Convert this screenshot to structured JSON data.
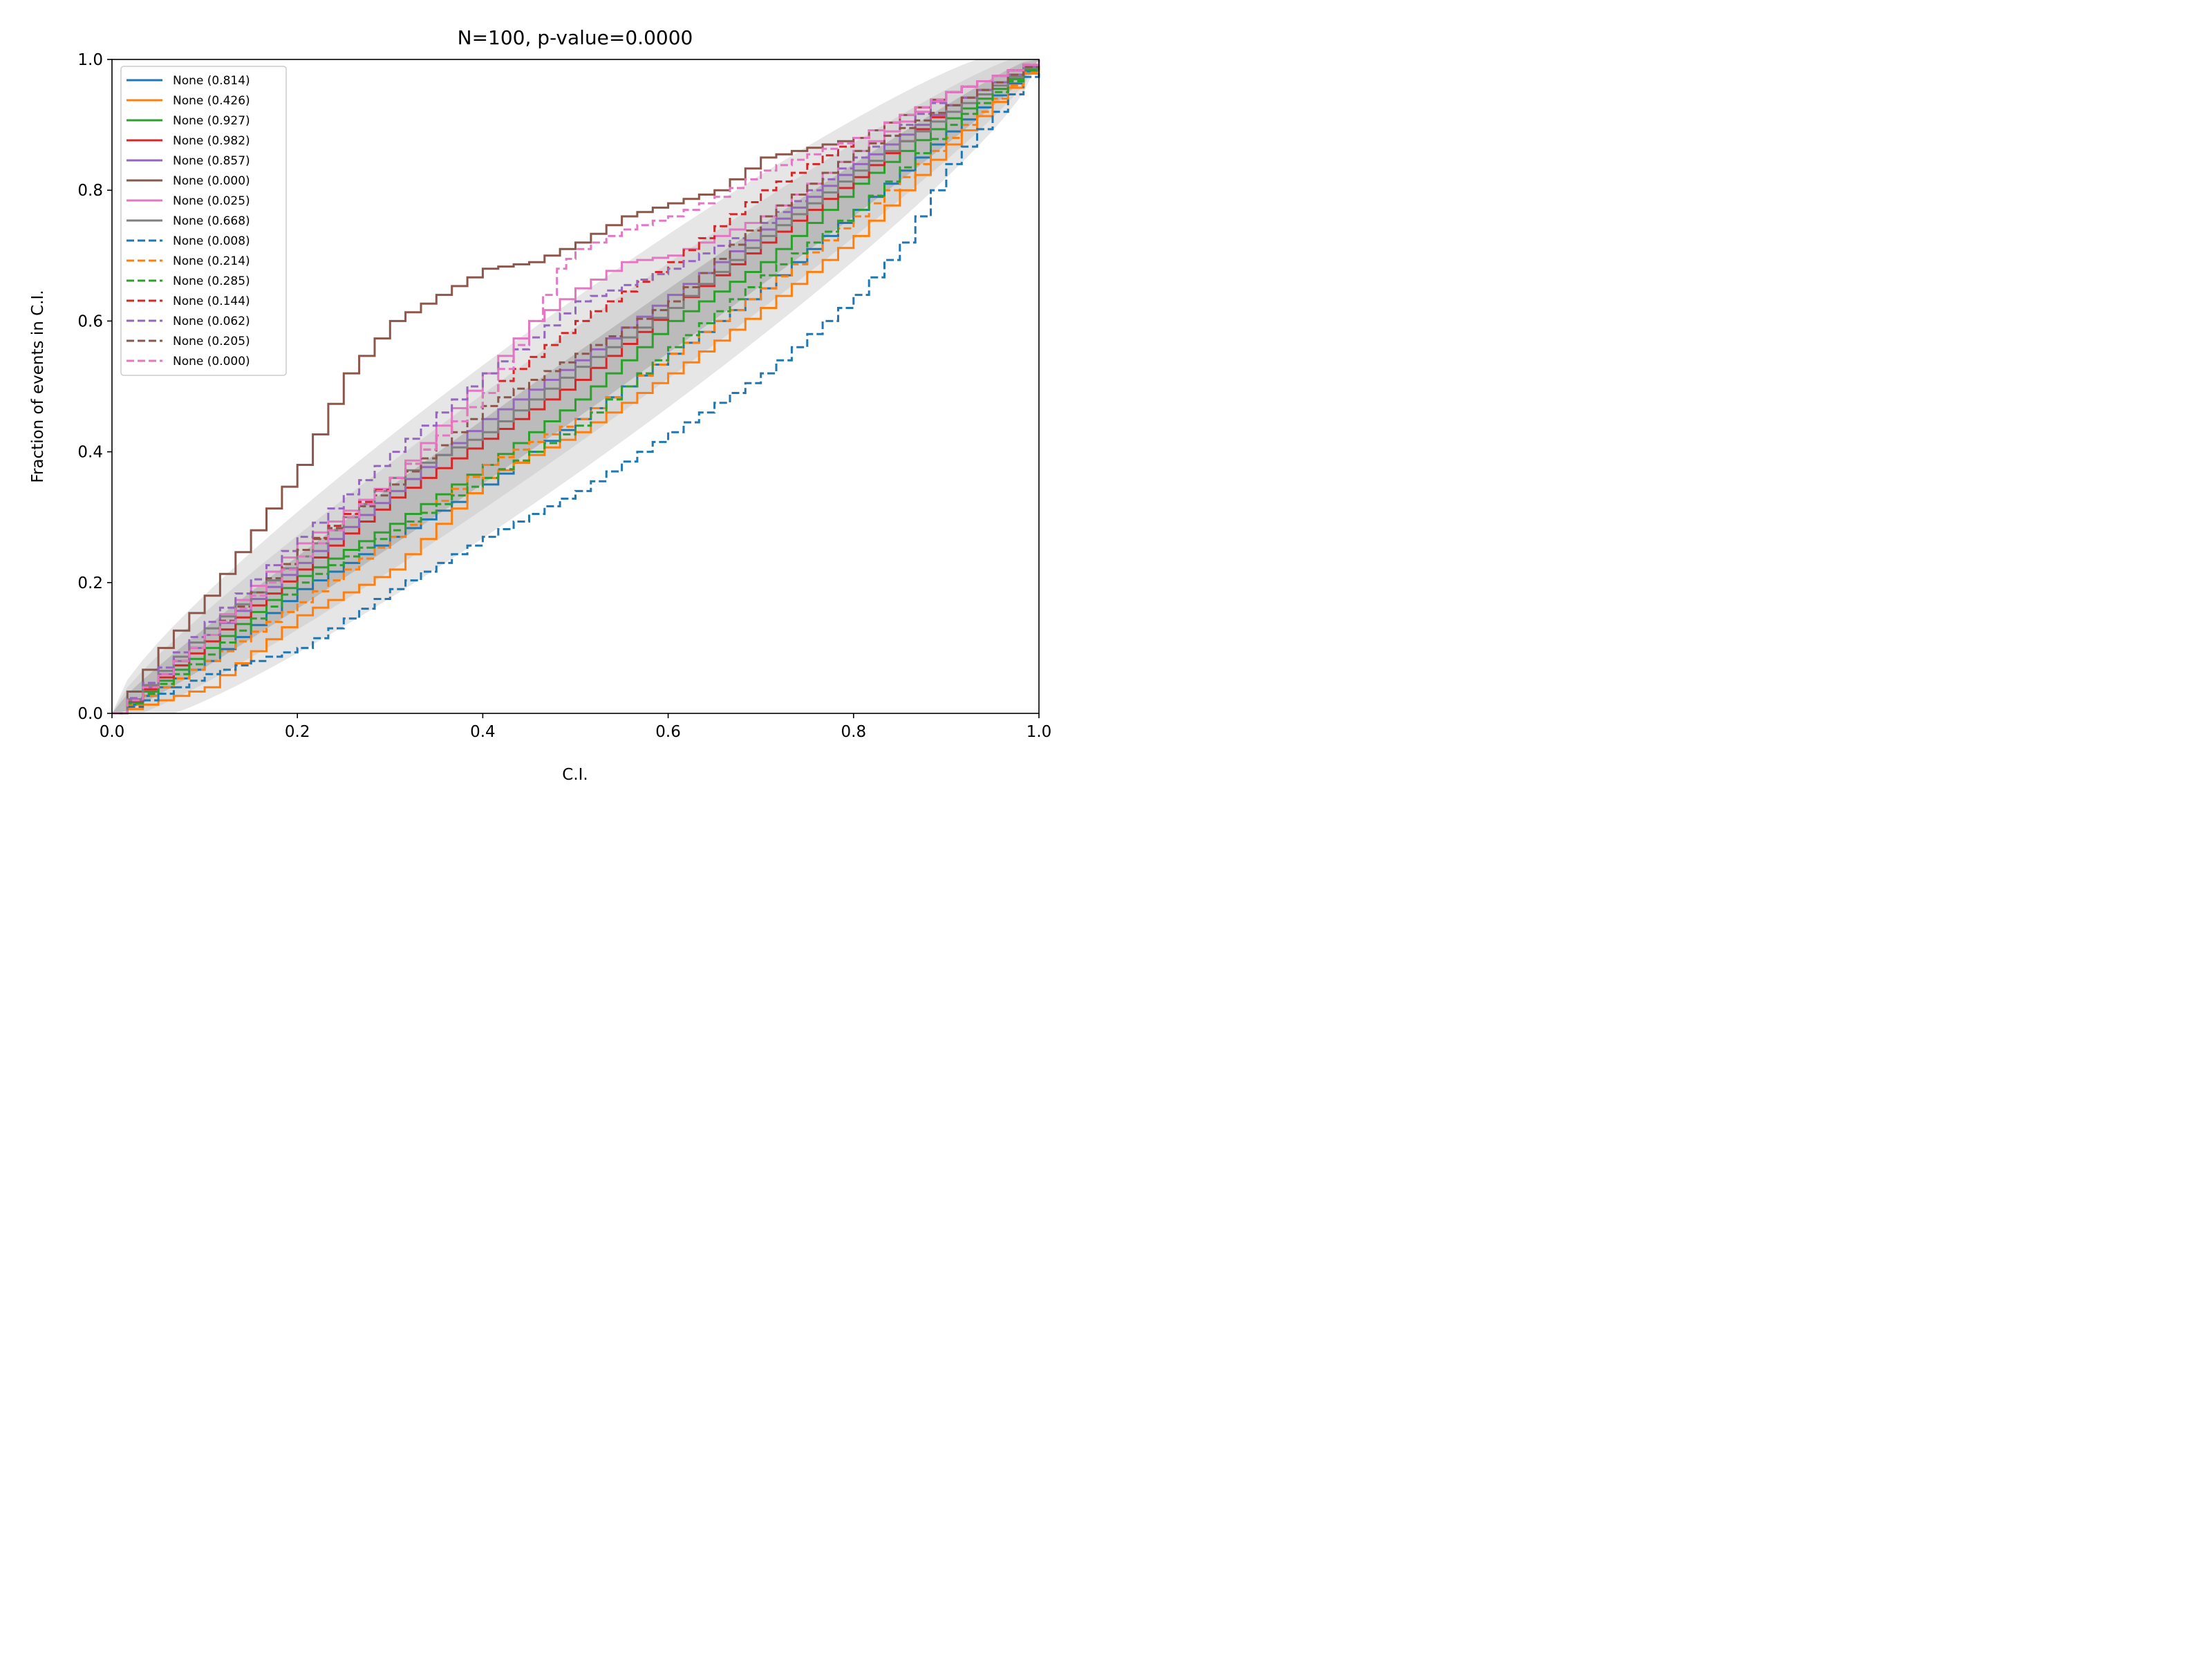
{
  "chart_data": {
    "type": "line",
    "title": "N=100, p-value=0.0000",
    "xlabel": "C.I.",
    "ylabel": "Fraction of events in C.I.",
    "xlim": [
      0,
      1
    ],
    "ylim": [
      0,
      1
    ],
    "xticks": [
      "0.0",
      "0.2",
      "0.4",
      "0.6",
      "0.8",
      "1.0"
    ],
    "yticks": [
      "0.0",
      "0.2",
      "0.4",
      "0.6",
      "0.8",
      "1.0"
    ],
    "legend_position": "upper-left",
    "confidence_bands": [
      {
        "name": "1-sigma",
        "color": "#bbbbbb",
        "halfwidth_at_half": 0.05
      },
      {
        "name": "2-sigma",
        "color": "#d6d6d6",
        "halfwidth_at_half": 0.09
      },
      {
        "name": "3-sigma",
        "color": "#e6e6e6",
        "halfwidth_at_half": 0.135
      }
    ],
    "series": [
      {
        "name": "None (0.814)",
        "color": "#1f77b4",
        "dash": "solid",
        "x": [
          0,
          0.1,
          0.2,
          0.3,
          0.4,
          0.5,
          0.6,
          0.7,
          0.8,
          0.9,
          1.0
        ],
        "y": [
          0,
          0.08,
          0.19,
          0.27,
          0.35,
          0.45,
          0.55,
          0.65,
          0.77,
          0.89,
          1.0
        ]
      },
      {
        "name": "None (0.426)",
        "color": "#ff7f0e",
        "dash": "solid",
        "x": [
          0,
          0.1,
          0.2,
          0.3,
          0.4,
          0.5,
          0.6,
          0.7,
          0.8,
          0.9,
          1.0
        ],
        "y": [
          0,
          0.04,
          0.15,
          0.22,
          0.36,
          0.43,
          0.52,
          0.62,
          0.73,
          0.87,
          1.0
        ]
      },
      {
        "name": "None (0.927)",
        "color": "#2ca02c",
        "dash": "solid",
        "x": [
          0,
          0.1,
          0.2,
          0.3,
          0.4,
          0.5,
          0.6,
          0.7,
          0.8,
          0.9,
          1.0
        ],
        "y": [
          0,
          0.1,
          0.21,
          0.29,
          0.38,
          0.48,
          0.6,
          0.69,
          0.81,
          0.91,
          1.0
        ]
      },
      {
        "name": "None (0.982)",
        "color": "#d62728",
        "dash": "solid",
        "x": [
          0,
          0.1,
          0.2,
          0.3,
          0.4,
          0.5,
          0.6,
          0.7,
          0.8,
          0.9,
          1.0
        ],
        "y": [
          0,
          0.11,
          0.22,
          0.33,
          0.42,
          0.51,
          0.62,
          0.72,
          0.82,
          0.93,
          1.0
        ]
      },
      {
        "name": "None (0.857)",
        "color": "#9467bd",
        "dash": "solid",
        "x": [
          0,
          0.1,
          0.2,
          0.3,
          0.4,
          0.5,
          0.6,
          0.7,
          0.8,
          0.9,
          1.0
        ],
        "y": [
          0,
          0.12,
          0.23,
          0.34,
          0.45,
          0.54,
          0.64,
          0.74,
          0.84,
          0.93,
          1.0
        ]
      },
      {
        "name": "None (0.000)",
        "color": "#8c564b",
        "dash": "solid",
        "x": [
          0,
          0.05,
          0.1,
          0.15,
          0.2,
          0.25,
          0.3,
          0.35,
          0.4,
          0.45,
          0.5,
          0.55,
          0.6,
          0.65,
          0.7,
          0.8,
          0.9,
          1.0
        ],
        "y": [
          0,
          0.1,
          0.18,
          0.28,
          0.38,
          0.52,
          0.6,
          0.64,
          0.68,
          0.69,
          0.72,
          0.76,
          0.78,
          0.8,
          0.85,
          0.88,
          0.95,
          1.0
        ]
      },
      {
        "name": "None (0.025)",
        "color": "#e377c2",
        "dash": "solid",
        "x": [
          0,
          0.1,
          0.2,
          0.3,
          0.4,
          0.45,
          0.5,
          0.55,
          0.6,
          0.7,
          0.8,
          0.9,
          1.0
        ],
        "y": [
          0,
          0.13,
          0.26,
          0.36,
          0.52,
          0.6,
          0.65,
          0.69,
          0.7,
          0.76,
          0.86,
          0.95,
          1.0
        ]
      },
      {
        "name": "None (0.668)",
        "color": "#7f7f7f",
        "dash": "solid",
        "x": [
          0,
          0.1,
          0.2,
          0.3,
          0.4,
          0.5,
          0.6,
          0.7,
          0.8,
          0.9,
          1.0
        ],
        "y": [
          0,
          0.13,
          0.24,
          0.36,
          0.43,
          0.53,
          0.62,
          0.73,
          0.83,
          0.92,
          1.0
        ]
      },
      {
        "name": "None (0.008)",
        "color": "#1f77b4",
        "dash": "dashed",
        "x": [
          0,
          0.1,
          0.2,
          0.3,
          0.4,
          0.5,
          0.6,
          0.7,
          0.8,
          0.85,
          0.9,
          1.0
        ],
        "y": [
          0,
          0.06,
          0.1,
          0.19,
          0.27,
          0.34,
          0.43,
          0.52,
          0.64,
          0.72,
          0.84,
          1.0
        ]
      },
      {
        "name": "None (0.214)",
        "color": "#ff7f0e",
        "dash": "dashed",
        "x": [
          0,
          0.1,
          0.2,
          0.3,
          0.4,
          0.5,
          0.6,
          0.7,
          0.8,
          0.9,
          1.0
        ],
        "y": [
          0,
          0.08,
          0.17,
          0.27,
          0.38,
          0.45,
          0.55,
          0.65,
          0.76,
          0.88,
          1.0
        ]
      },
      {
        "name": "None (0.285)",
        "color": "#2ca02c",
        "dash": "dashed",
        "x": [
          0,
          0.1,
          0.2,
          0.3,
          0.4,
          0.5,
          0.6,
          0.7,
          0.8,
          0.9,
          1.0
        ],
        "y": [
          0,
          0.09,
          0.2,
          0.28,
          0.36,
          0.44,
          0.56,
          0.67,
          0.77,
          0.9,
          1.0
        ]
      },
      {
        "name": "None (0.144)",
        "color": "#d62728",
        "dash": "dashed",
        "x": [
          0,
          0.1,
          0.2,
          0.3,
          0.4,
          0.5,
          0.6,
          0.7,
          0.8,
          0.9,
          1.0
        ],
        "y": [
          0,
          0.12,
          0.25,
          0.36,
          0.49,
          0.6,
          0.69,
          0.8,
          0.88,
          0.95,
          1.0
        ]
      },
      {
        "name": "None (0.062)",
        "color": "#9467bd",
        "dash": "dashed",
        "x": [
          0,
          0.1,
          0.2,
          0.3,
          0.4,
          0.5,
          0.6,
          0.7,
          0.8,
          0.9,
          1.0
        ],
        "y": [
          0,
          0.14,
          0.27,
          0.4,
          0.52,
          0.63,
          0.68,
          0.75,
          0.85,
          0.95,
          1.0
        ]
      },
      {
        "name": "None (0.205)",
        "color": "#8c564b",
        "dash": "dashed",
        "x": [
          0,
          0.1,
          0.2,
          0.3,
          0.4,
          0.5,
          0.6,
          0.7,
          0.8,
          0.9,
          1.0
        ],
        "y": [
          0,
          0.12,
          0.25,
          0.35,
          0.47,
          0.55,
          0.63,
          0.76,
          0.86,
          0.93,
          1.0
        ]
      },
      {
        "name": "None (0.000)",
        "color": "#e377c2",
        "dash": "dashed",
        "x": [
          0,
          0.1,
          0.2,
          0.3,
          0.4,
          0.45,
          0.48,
          0.5,
          0.55,
          0.6,
          0.65,
          0.7,
          0.8,
          0.9,
          1.0
        ],
        "y": [
          0,
          0.12,
          0.24,
          0.36,
          0.49,
          0.6,
          0.68,
          0.71,
          0.74,
          0.76,
          0.79,
          0.83,
          0.88,
          0.95,
          1.0
        ]
      }
    ]
  }
}
